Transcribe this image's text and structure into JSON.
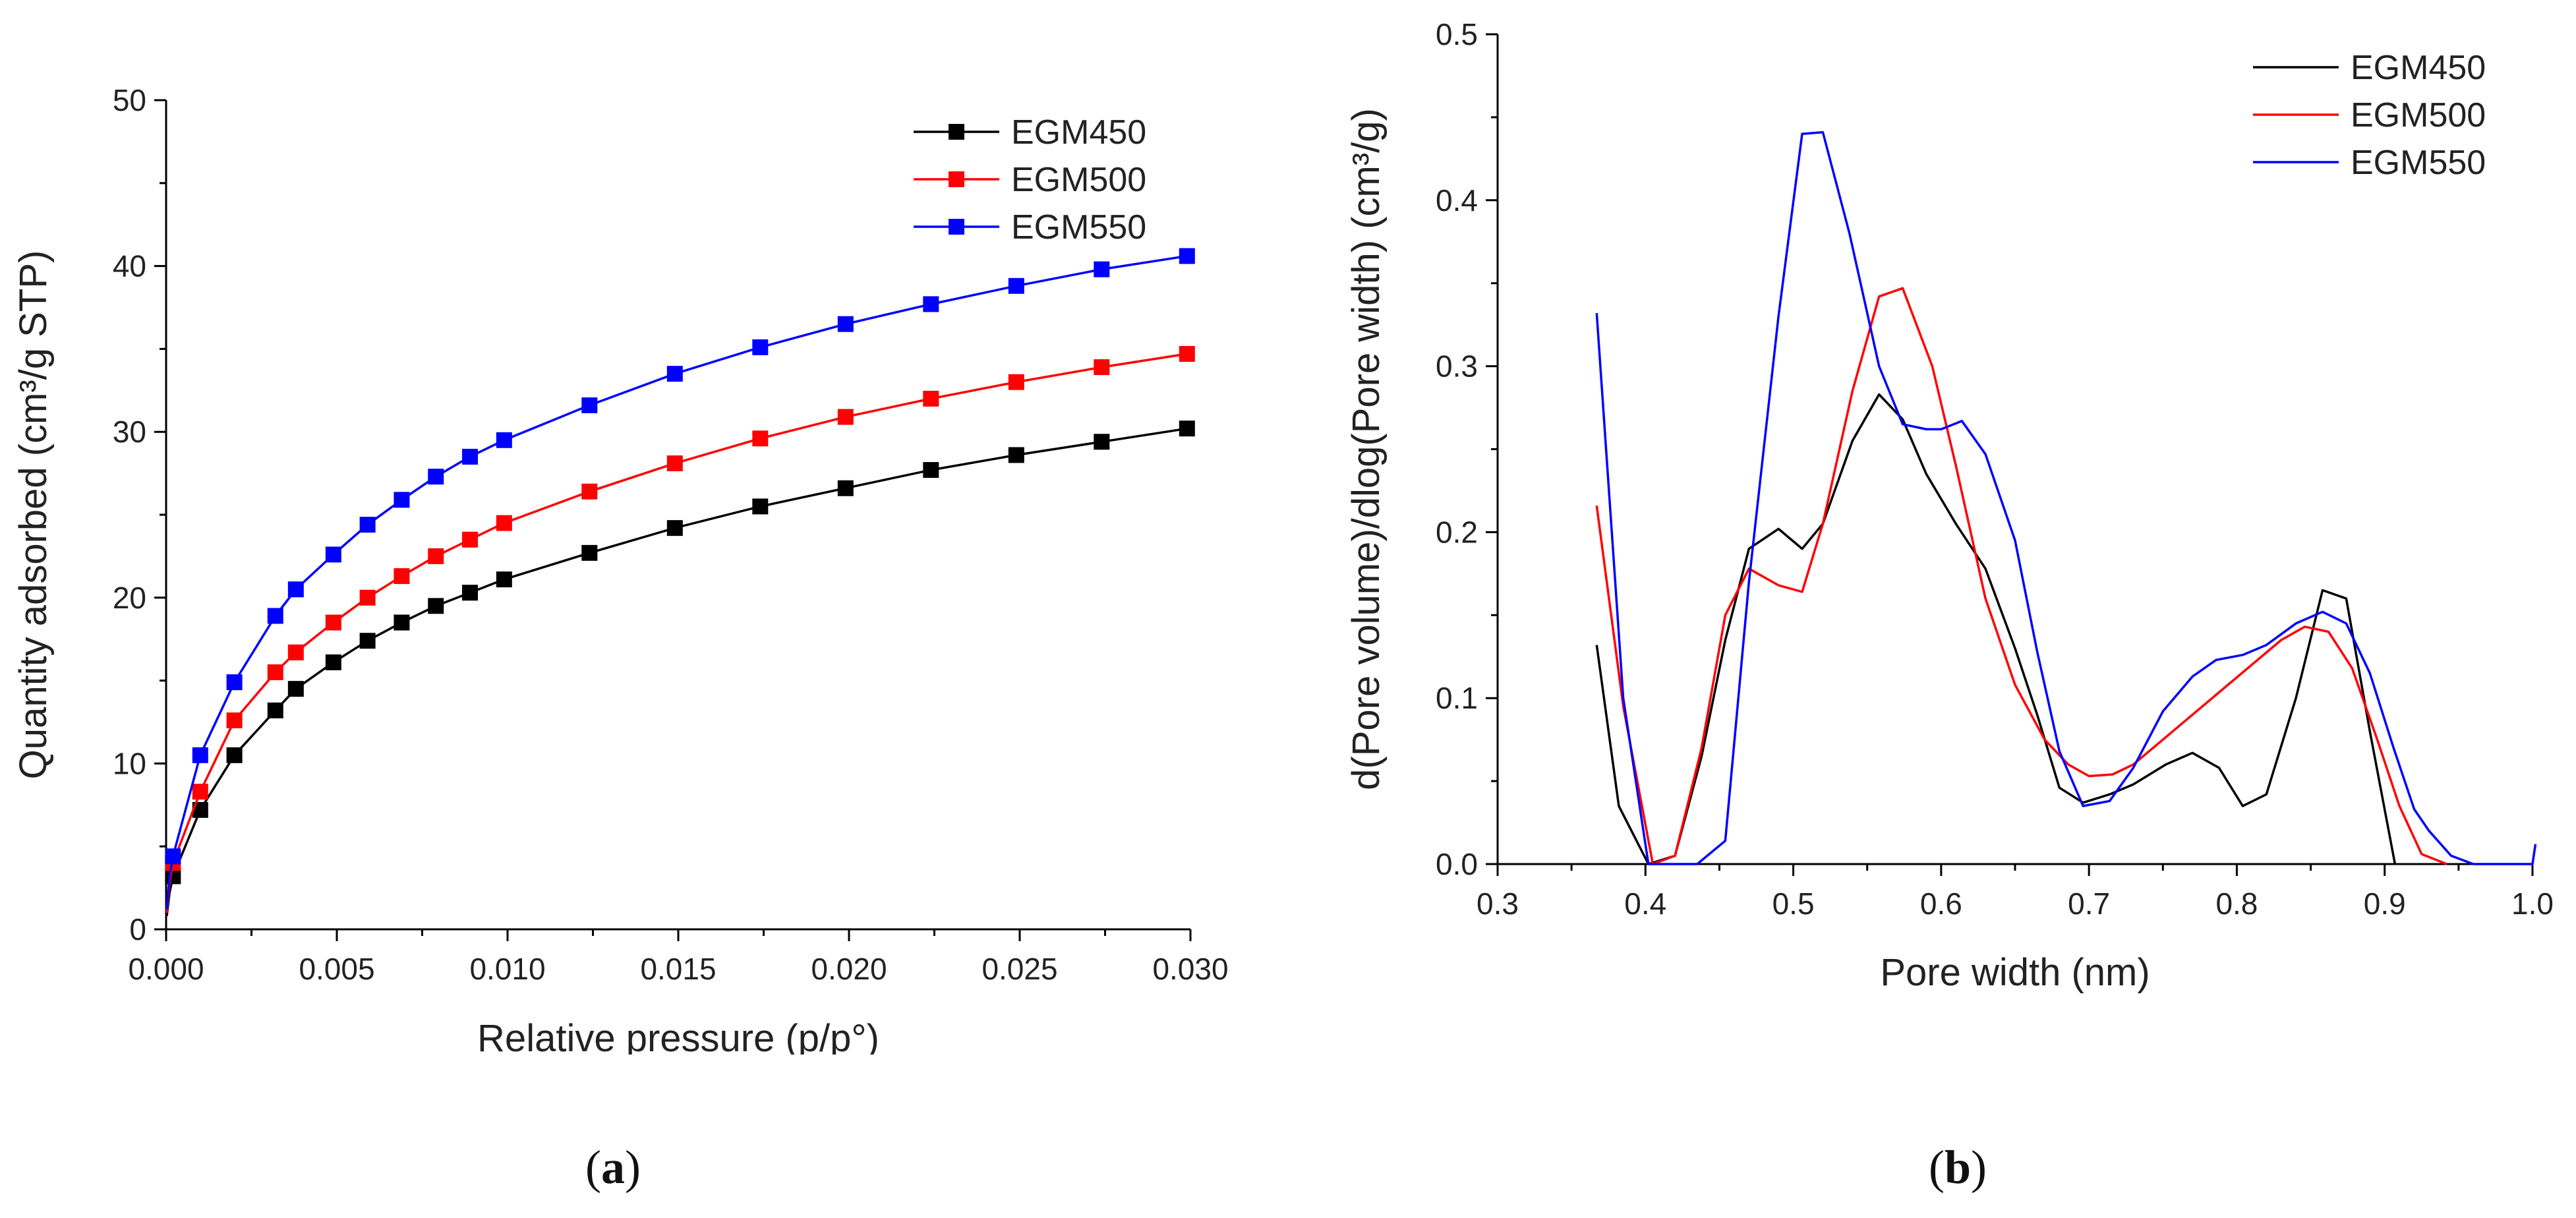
{
  "chart_data": [
    {
      "type": "line",
      "panel": "(a)",
      "title": "",
      "xlabel": "Relative pressure (p/p°)",
      "ylabel": "Quantity adsorbed (cm³/g STP)",
      "xlim": [
        0,
        0.03
      ],
      "ylim": [
        0,
        50
      ],
      "xticks": [
        "0.000",
        "0.005",
        "0.010",
        "0.015",
        "0.020",
        "0.025",
        "0.030"
      ],
      "yticks": [
        "0",
        "10",
        "20",
        "30",
        "40",
        "50"
      ],
      "markers": true,
      "x": [
        2e-05,
        0.0001,
        0.0002,
        0.001,
        0.002,
        0.0032,
        0.0038,
        0.0049,
        0.0059,
        0.0069,
        0.0079,
        0.0089,
        0.0099,
        0.0124,
        0.0149,
        0.0174,
        0.0199,
        0.0224,
        0.0249,
        0.0274,
        0.0299
      ],
      "series": [
        {
          "name": "EGM450",
          "color": "#000000",
          "values": [
            0.8,
            2.2,
            3.2,
            7.2,
            10.5,
            13.2,
            14.5,
            16.1,
            17.4,
            18.5,
            19.5,
            20.3,
            21.1,
            22.7,
            24.2,
            25.5,
            26.6,
            27.7,
            28.6,
            29.4,
            30.2
          ]
        },
        {
          "name": "EGM500",
          "color": "#ff0000",
          "values": [
            1.0,
            2.8,
            4.0,
            8.3,
            12.6,
            15.5,
            16.7,
            18.5,
            20.0,
            21.3,
            22.5,
            23.5,
            24.5,
            26.4,
            28.1,
            29.6,
            30.9,
            32.0,
            33.0,
            33.9,
            34.7
          ]
        },
        {
          "name": "EGM550",
          "color": "#0000ff",
          "values": [
            1.2,
            3.2,
            4.4,
            10.5,
            14.9,
            18.9,
            20.5,
            22.6,
            24.4,
            25.9,
            27.3,
            28.5,
            29.5,
            31.6,
            33.5,
            35.1,
            36.5,
            37.7,
            38.8,
            39.8,
            40.6
          ]
        }
      ],
      "legend": "top-right"
    },
    {
      "type": "line",
      "panel": "(b)",
      "title": "",
      "xlabel": "Pore width (nm)",
      "ylabel": "d(Pore volume)/dlog(Pore width) (cm³/g)",
      "xlim": [
        0.3,
        1.0
      ],
      "ylim": [
        0,
        0.5
      ],
      "xticks": [
        "0.3",
        "0.4",
        "0.5",
        "0.6",
        "0.7",
        "0.8",
        "0.9",
        "1.0"
      ],
      "yticks": [
        "0.0",
        "0.1",
        "0.2",
        "0.3",
        "0.4",
        "0.5"
      ],
      "markers": false,
      "series": [
        {
          "name": "EGM450",
          "color": "#000000",
          "x": [
            0.367,
            0.382,
            0.402,
            0.42,
            0.438,
            0.454,
            0.47,
            0.49,
            0.506,
            0.52,
            0.54,
            0.558,
            0.574,
            0.59,
            0.61,
            0.63,
            0.65,
            0.665,
            0.68,
            0.696,
            0.714,
            0.73,
            0.752,
            0.77,
            0.788,
            0.804,
            0.82,
            0.84,
            0.858,
            0.874,
            0.89,
            0.907
          ],
          "y": [
            0.132,
            0.035,
            0.0,
            0.005,
            0.065,
            0.135,
            0.19,
            0.202,
            0.19,
            0.205,
            0.255,
            0.283,
            0.268,
            0.235,
            0.205,
            0.178,
            0.13,
            0.09,
            0.046,
            0.037,
            0.042,
            0.048,
            0.06,
            0.067,
            0.058,
            0.035,
            0.042,
            0.1,
            0.165,
            0.16,
            0.08,
            0.0
          ]
        },
        {
          "name": "EGM500",
          "color": "#ff0000",
          "x": [
            0.367,
            0.385,
            0.405,
            0.42,
            0.438,
            0.454,
            0.47,
            0.49,
            0.506,
            0.52,
            0.54,
            0.558,
            0.574,
            0.594,
            0.61,
            0.63,
            0.65,
            0.67,
            0.686,
            0.7,
            0.716,
            0.73,
            0.75,
            0.77,
            0.79,
            0.81,
            0.83,
            0.846,
            0.862,
            0.878,
            0.895,
            0.91,
            0.925,
            0.942
          ],
          "y": [
            0.216,
            0.095,
            0.0,
            0.005,
            0.07,
            0.15,
            0.178,
            0.168,
            0.164,
            0.205,
            0.285,
            0.342,
            0.347,
            0.3,
            0.24,
            0.16,
            0.108,
            0.075,
            0.06,
            0.053,
            0.054,
            0.06,
            0.075,
            0.09,
            0.105,
            0.12,
            0.135,
            0.143,
            0.14,
            0.118,
            0.075,
            0.035,
            0.006,
            0.0
          ]
        },
        {
          "name": "EGM550",
          "color": "#0000ff",
          "x": [
            0.367,
            0.385,
            0.402,
            0.435,
            0.454,
            0.47,
            0.49,
            0.506,
            0.52,
            0.538,
            0.558,
            0.574,
            0.59,
            0.6,
            0.614,
            0.63,
            0.65,
            0.665,
            0.68,
            0.696,
            0.714,
            0.73,
            0.75,
            0.77,
            0.786,
            0.804,
            0.82,
            0.84,
            0.858,
            0.874,
            0.89,
            0.906,
            0.92,
            0.93,
            0.945,
            0.96,
            1.0,
            1.002
          ],
          "y": [
            0.332,
            0.1,
            0.0,
            0.0,
            0.014,
            0.17,
            0.33,
            0.44,
            0.441,
            0.38,
            0.3,
            0.265,
            0.262,
            0.262,
            0.267,
            0.247,
            0.195,
            0.128,
            0.068,
            0.035,
            0.038,
            0.058,
            0.092,
            0.113,
            0.123,
            0.126,
            0.132,
            0.145,
            0.152,
            0.145,
            0.115,
            0.07,
            0.033,
            0.02,
            0.005,
            0.0,
            0.0,
            0.012
          ]
        }
      ],
      "legend": "top-right"
    }
  ],
  "labels": {
    "panel_a": "a",
    "panel_b": "b"
  }
}
